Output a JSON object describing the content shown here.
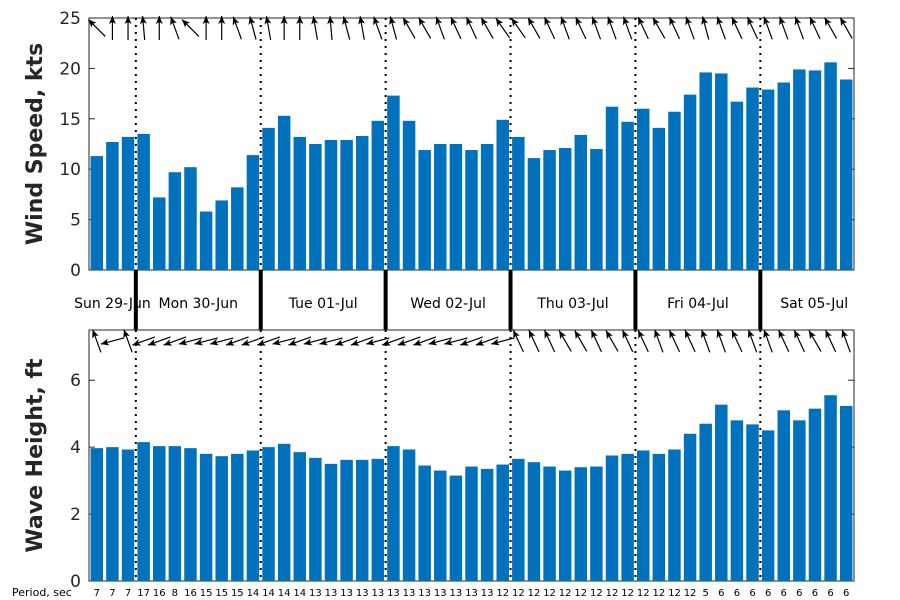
{
  "chart_data": [
    {
      "type": "bar",
      "ylabel": "Wind Speed, kts",
      "ylim": [
        0,
        25
      ],
      "yticks": [
        0,
        5,
        10,
        15,
        20,
        25
      ],
      "color": "#0072bd",
      "values": [
        11.3,
        12.7,
        13.2,
        13.5,
        7.2,
        9.7,
        10.2,
        5.8,
        6.9,
        8.2,
        11.4,
        14.1,
        15.3,
        13.2,
        12.5,
        12.9,
        12.9,
        13.3,
        14.8,
        17.3,
        14.8,
        11.9,
        12.5,
        12.5,
        11.9,
        12.5,
        14.9,
        13.2,
        11.1,
        11.9,
        12.1,
        13.4,
        12.0,
        16.2,
        14.7,
        16.0,
        14.1,
        15.7,
        17.4,
        19.6,
        19.5,
        16.7,
        18.1,
        17.9,
        18.6,
        19.9,
        19.8,
        20.6,
        18.9
      ],
      "direction_arrow_angles": [
        225,
        270,
        270,
        265,
        270,
        250,
        225,
        270,
        270,
        250,
        255,
        260,
        270,
        270,
        260,
        265,
        255,
        260,
        250,
        255,
        240,
        240,
        250,
        245,
        245,
        240,
        235,
        235,
        240,
        245,
        250,
        245,
        250,
        250,
        250,
        245,
        240,
        245,
        250,
        255,
        250,
        245,
        245,
        250,
        250,
        250,
        245,
        240,
        240
      ]
    },
    {
      "type": "bar",
      "ylabel": "Wave Height, ft",
      "ylim": [
        0,
        7.5
      ],
      "yticks": [
        0,
        2,
        4,
        6
      ],
      "color": "#0072bd",
      "values": [
        3.97,
        4.0,
        3.93,
        4.15,
        4.03,
        4.03,
        3.97,
        3.8,
        3.73,
        3.8,
        3.9,
        4.0,
        4.1,
        3.85,
        3.68,
        3.5,
        3.62,
        3.62,
        3.65,
        4.03,
        3.93,
        3.45,
        3.3,
        3.15,
        3.42,
        3.35,
        3.48,
        3.65,
        3.55,
        3.42,
        3.3,
        3.4,
        3.42,
        3.75,
        3.8,
        3.9,
        3.8,
        3.93,
        4.4,
        4.7,
        5.27,
        4.8,
        4.68,
        4.5,
        5.1,
        4.8,
        5.15,
        5.55,
        5.23
      ],
      "direction_arrow_angles": [
        250,
        165,
        250,
        160,
        160,
        160,
        165,
        165,
        165,
        160,
        160,
        160,
        165,
        160,
        165,
        165,
        160,
        160,
        165,
        160,
        160,
        160,
        165,
        165,
        160,
        160,
        165,
        245,
        245,
        245,
        240,
        240,
        245,
        240,
        245,
        245,
        250,
        245,
        245,
        250,
        250,
        245,
        250,
        250,
        245,
        245,
        240,
        245,
        250
      ]
    }
  ],
  "days": [
    "Sun 29-Jun",
    "Mon 30-Jun",
    "Tue 01-Jul",
    "Wed 02-Jul",
    "Thu 03-Jul",
    "Fri 04-Jul",
    "Sat 05-Jul"
  ],
  "day_start_indices": [
    3,
    11,
    19,
    27,
    35,
    43
  ],
  "period_title": "Period, sec",
  "periods": [
    "7",
    "7",
    "7",
    "17",
    "16",
    "8",
    "16",
    "15",
    "15",
    "15",
    "14",
    "14",
    "14",
    "14",
    "13",
    "13",
    "13",
    "13",
    "13",
    "13",
    "13",
    "13",
    "13",
    "13",
    "13",
    "13",
    "12",
    "12",
    "12",
    "12",
    "12",
    "12",
    "12",
    "12",
    "12",
    "12",
    "12",
    "12",
    "12",
    "5",
    "6",
    "6",
    "6",
    "6",
    "6",
    "6",
    "6",
    "6",
    "6"
  ]
}
